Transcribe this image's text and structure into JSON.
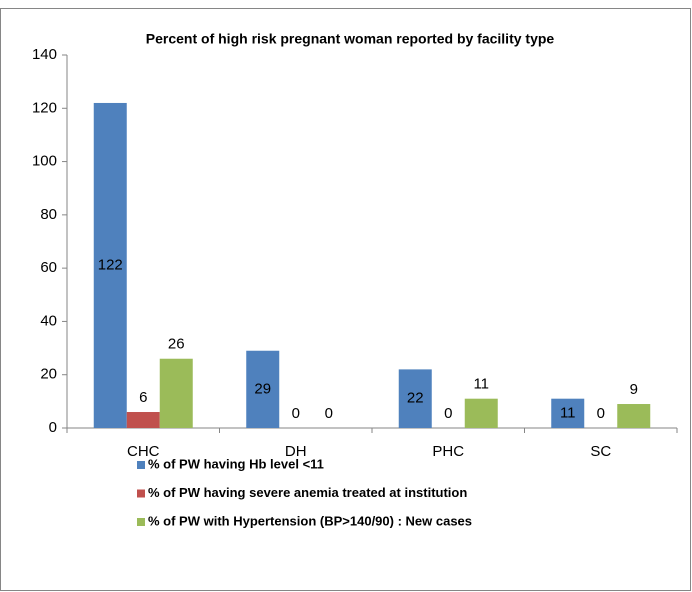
{
  "chart_data": {
    "type": "bar",
    "title": "Percent of high risk pregnant woman reported by facility type",
    "categories": [
      "CHC",
      "DH",
      "PHC",
      "SC"
    ],
    "series": [
      {
        "name": "% of PW having Hb level <11",
        "color": "#4f81bd",
        "values": [
          122,
          29,
          22,
          11
        ]
      },
      {
        "name": "% of PW having severe anemia treated at institution",
        "color": "#c0504d",
        "values": [
          6,
          0,
          0,
          0
        ]
      },
      {
        "name": "% of PW with Hypertension (BP>140/90) : New cases",
        "color": "#9bbb59",
        "values": [
          26,
          0,
          11,
          9
        ]
      }
    ],
    "ylim": [
      0,
      140
    ],
    "yticks": [
      0,
      20,
      40,
      60,
      80,
      100,
      120,
      140
    ],
    "grid": false,
    "legend": "bottom"
  }
}
